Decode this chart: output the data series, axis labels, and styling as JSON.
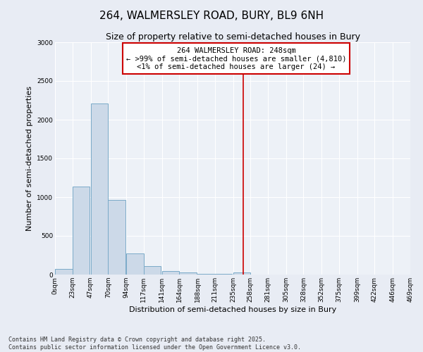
{
  "title": "264, WALMERSLEY ROAD, BURY, BL9 6NH",
  "subtitle": "Size of property relative to semi-detached houses in Bury",
  "xlabel": "Distribution of semi-detached houses by size in Bury",
  "ylabel": "Number of semi-detached properties",
  "footnote1": "Contains HM Land Registry data © Crown copyright and database right 2025.",
  "footnote2": "Contains public sector information licensed under the Open Government Licence v3.0.",
  "bin_edges": [
    0,
    23,
    47,
    70,
    94,
    117,
    141,
    164,
    188,
    211,
    235,
    258,
    281,
    305,
    328,
    352,
    375,
    399,
    422,
    446,
    469
  ],
  "bar_heights": [
    70,
    1140,
    2210,
    960,
    270,
    110,
    50,
    25,
    10,
    5,
    30,
    0,
    0,
    0,
    0,
    0,
    0,
    0,
    0,
    0
  ],
  "bar_color": "#ccd9e8",
  "bar_edgecolor": "#7aaac8",
  "property_size": 248,
  "vline_color": "#cc0000",
  "annotation_title": "264 WALMERSLEY ROAD: 248sqm",
  "annotation_line1": "← >99% of semi-detached houses are smaller (4,810)",
  "annotation_line2": "<1% of semi-detached houses are larger (24) →",
  "annotation_box_color": "#ffffff",
  "annotation_border_color": "#cc0000",
  "ylim": [
    0,
    3000
  ],
  "yticks": [
    0,
    500,
    1000,
    1500,
    2000,
    2500,
    3000
  ],
  "bg_color": "#e8ecf4",
  "plot_bg_color": "#edf1f7",
  "title_fontsize": 11,
  "subtitle_fontsize": 9,
  "axis_label_fontsize": 8,
  "tick_fontsize": 6.5,
  "annotation_fontsize": 7.5
}
